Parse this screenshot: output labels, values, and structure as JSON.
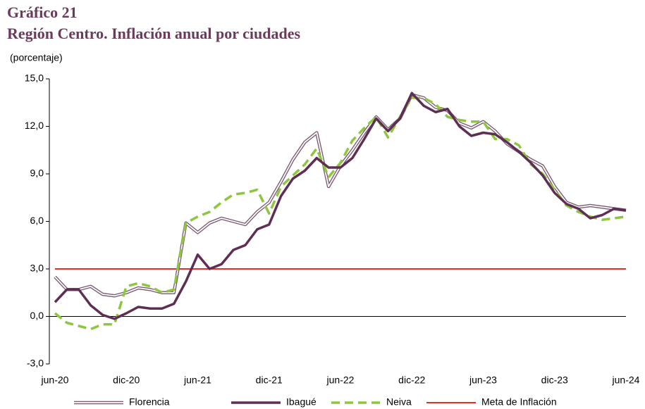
{
  "chart_data": {
    "type": "line",
    "title": "Gráfico 21",
    "subtitle": "Región Centro. Inflación anual por ciudades",
    "y_label": "(porcentaje)",
    "categories": [
      "jun-20",
      null,
      null,
      null,
      null,
      null,
      "dic-20",
      null,
      null,
      null,
      null,
      null,
      "jun-21",
      null,
      null,
      null,
      null,
      null,
      "dic-21",
      null,
      null,
      null,
      null,
      null,
      "jun-22",
      null,
      null,
      null,
      null,
      null,
      "dic-22",
      null,
      null,
      null,
      null,
      null,
      "jun-23",
      null,
      null,
      null,
      null,
      null,
      "dic-23",
      null,
      null,
      null,
      null,
      null,
      "jun-24"
    ],
    "ylim": [
      -3,
      15
    ],
    "yticks": [
      {
        "value": -3,
        "label": "-3,0"
      },
      {
        "value": 0,
        "label": "0,0"
      },
      {
        "value": 3,
        "label": "3,0"
      },
      {
        "value": 6,
        "label": "6,0"
      },
      {
        "value": 9,
        "label": "9,0"
      },
      {
        "value": 12,
        "label": "12,0"
      },
      {
        "value": 15,
        "label": "15,0"
      }
    ],
    "grid": false,
    "legend": "bottom",
    "series": [
      {
        "name": "Florencia",
        "color": "#7a5a72",
        "style": "double",
        "values": [
          2.5,
          1.7,
          1.7,
          1.9,
          1.4,
          1.3,
          1.5,
          1.8,
          1.7,
          1.5,
          1.5,
          5.9,
          5.3,
          5.9,
          6.2,
          6.0,
          5.8,
          6.6,
          7.2,
          8.5,
          9.9,
          11.0,
          11.6,
          8.2,
          9.5,
          10.5,
          11.6,
          12.6,
          11.8,
          12.5,
          14.0,
          13.8,
          13.2,
          13.0,
          12.2,
          11.9,
          12.3,
          11.7,
          10.9,
          10.4,
          9.9,
          9.5,
          8.2,
          7.2,
          6.9,
          7.0,
          6.9,
          6.8,
          6.7
        ]
      },
      {
        "name": "Ibagué",
        "color": "#5e2f52",
        "style": "solid",
        "values": [
          0.9,
          1.7,
          1.7,
          0.7,
          0.1,
          -0.15,
          0.2,
          0.6,
          0.5,
          0.5,
          0.8,
          2.2,
          3.9,
          3.0,
          3.3,
          4.2,
          4.5,
          5.5,
          5.8,
          7.6,
          8.7,
          9.2,
          10.0,
          9.4,
          9.4,
          10.0,
          11.2,
          12.5,
          11.7,
          12.5,
          14.1,
          13.3,
          12.9,
          13.1,
          12.0,
          11.4,
          11.6,
          11.5,
          11.0,
          10.4,
          9.7,
          8.9,
          7.8,
          7.1,
          6.8,
          6.2,
          6.4,
          6.8,
          6.7
        ]
      },
      {
        "name": "Neiva",
        "color": "#8dc63f",
        "style": "dashed",
        "values": [
          0.2,
          -0.4,
          -0.6,
          -0.8,
          -0.5,
          -0.5,
          1.9,
          2.1,
          1.9,
          1.5,
          1.7,
          5.9,
          6.3,
          6.6,
          7.2,
          7.7,
          7.8,
          8.0,
          6.5,
          8.2,
          8.9,
          9.6,
          10.6,
          8.8,
          9.7,
          11.1,
          11.9,
          12.6,
          11.3,
          12.6,
          13.8,
          13.8,
          13.4,
          12.6,
          12.4,
          12.3,
          12.3,
          11.2,
          11.2,
          10.8,
          9.6,
          9.0,
          8.0,
          7.0,
          6.6,
          6.3,
          6.1,
          6.2,
          6.3
        ]
      },
      {
        "name": "Meta de Inflación",
        "color": "#e0302a",
        "style": "thin",
        "values": [
          3,
          3,
          3,
          3,
          3,
          3,
          3,
          3,
          3,
          3,
          3,
          3,
          3,
          3,
          3,
          3,
          3,
          3,
          3,
          3,
          3,
          3,
          3,
          3,
          3,
          3,
          3,
          3,
          3,
          3,
          3,
          3,
          3,
          3,
          3,
          3,
          3,
          3,
          3,
          3,
          3,
          3,
          3,
          3,
          3,
          3,
          3,
          3,
          3
        ]
      }
    ]
  }
}
